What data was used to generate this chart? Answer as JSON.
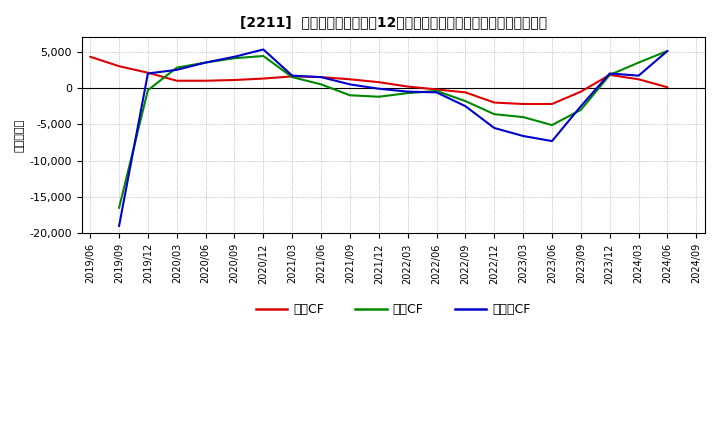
{
  "title": "[2211]  キャッシュフローの12か月移動合計の対前年同期増減額の推移",
  "ylabel": "（百万円）",
  "xlabels": [
    "2019/06",
    "2019/09",
    "2019/12",
    "2020/03",
    "2020/06",
    "2020/09",
    "2020/12",
    "2021/03",
    "2021/06",
    "2021/09",
    "2021/12",
    "2022/03",
    "2022/06",
    "2022/09",
    "2022/12",
    "2023/03",
    "2023/06",
    "2023/09",
    "2023/12",
    "2024/03",
    "2024/06",
    "2024/09"
  ],
  "series": {
    "営業CF": {
      "color": "#dd0000",
      "values": [
        4300,
        3000,
        2100,
        1000,
        1000,
        1100,
        1300,
        1600,
        1500,
        1200,
        800,
        200,
        -200,
        -600,
        -2000,
        -2200,
        -2200,
        -500,
        1800,
        1200,
        100,
        null
      ]
    },
    "投資CF": {
      "color": "#008800",
      "values": [
        null,
        -16500,
        -300,
        2800,
        3500,
        4100,
        4400,
        1500,
        500,
        -1000,
        -1200,
        -700,
        -400,
        -1800,
        -3600,
        -4000,
        -5100,
        -3000,
        1800,
        3500,
        5100,
        null
      ]
    },
    "フリーCF": {
      "color": "#0000cc",
      "values": [
        null,
        -19000,
        2000,
        2500,
        3500,
        4300,
        5300,
        1700,
        1500,
        500,
        -100,
        -500,
        -600,
        -2500,
        -5500,
        -6600,
        -7300,
        -2500,
        2000,
        1700,
        5100,
        null
      ]
    }
  },
  "ylim": [
    -20000,
    7000
  ],
  "yticks": [
    -20000,
    -15000,
    -10000,
    -5000,
    0,
    5000
  ],
  "ytick_labels": [
    "-20,000",
    "-15,000",
    "-10,000",
    "-5,000",
    "0",
    "5,000"
  ],
  "background_color": "#ffffff",
  "grid_color": "#999999",
  "legend_order": [
    "営業CF",
    "投資CF",
    "フリーCF"
  ],
  "legend_colors": [
    "#dd0000",
    "#008800",
    "#0000cc"
  ]
}
